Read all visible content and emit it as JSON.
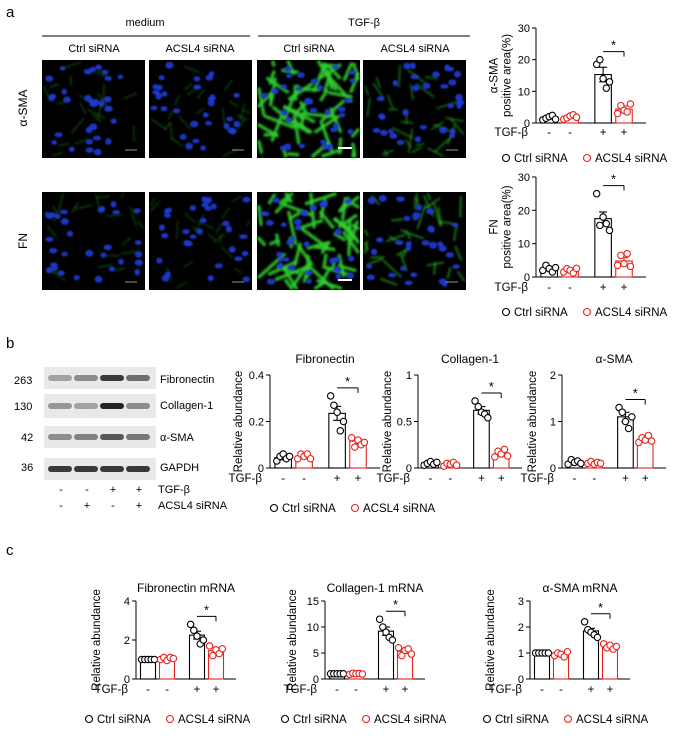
{
  "panels": {
    "a": "a",
    "b": "b",
    "c": "c"
  },
  "micrographs": {
    "group_labels": [
      "medium",
      "TGF-β"
    ],
    "column_labels": [
      "Ctrl siRNA",
      "ACSL4 siRNA",
      "Ctrl siRNA",
      "ACSL4 siRNA"
    ],
    "row_labels": [
      "α-SMA",
      "FN"
    ],
    "nuclei_color": "#1f3bd6",
    "stain_color": "#2fd02f"
  },
  "western_blot": {
    "bands": [
      {
        "marker": "263",
        "protein": "Fibronectin"
      },
      {
        "marker": "130",
        "protein": "Collagen-1"
      },
      {
        "marker": "42",
        "protein": "α-SMA"
      },
      {
        "marker": "36",
        "protein": "GAPDH"
      }
    ],
    "conditions": [
      {
        "label": "TGF-β",
        "signs": [
          "-",
          "-",
          "+",
          "+"
        ]
      },
      {
        "label": "ACSL4 siRNA",
        "signs": [
          "-",
          "+",
          "-",
          "+"
        ]
      }
    ]
  },
  "legend": {
    "ctrl": "Ctrl siRNA",
    "acsl4": "ACSL4 siRNA",
    "ctrl_color": "#000000",
    "acsl4_color": "#e8231e"
  },
  "chart_data": [
    {
      "id": "aSMA_area",
      "type": "bar",
      "title": "",
      "ylabel_lines": [
        "α-SMA",
        "positive area(%)"
      ],
      "ylim": [
        0,
        30
      ],
      "yticks": [
        "0",
        "10",
        "20",
        "30"
      ],
      "xrow_label": "TGF-β",
      "xsigns": [
        "-",
        "-",
        "+",
        "+"
      ],
      "values": [
        1.8,
        1.9,
        15.3,
        4.4
      ],
      "errors": [
        0.4,
        0.4,
        2.3,
        1.0
      ],
      "points": [
        [
          1.0,
          1.5,
          2.0,
          2.4,
          1.2
        ],
        [
          1.2,
          1.6,
          2.2,
          2.6,
          1.8
        ],
        [
          18.5,
          20.0,
          14.0,
          11.0,
          13.0
        ],
        [
          3.0,
          5.5,
          4.0,
          3.5,
          6.0
        ]
      ],
      "significance": "*"
    },
    {
      "id": "FN_area",
      "type": "bar",
      "title": "",
      "ylabel_lines": [
        "FN",
        "positive area(%)"
      ],
      "ylim": [
        0,
        30
      ],
      "yticks": [
        "0",
        "10",
        "20",
        "30"
      ],
      "xrow_label": "TGF-β",
      "xsigns": [
        "-",
        "-",
        "+",
        "+"
      ],
      "values": [
        2.5,
        2.0,
        17.5,
        4.8
      ],
      "errors": [
        0.5,
        0.4,
        2.0,
        1.0
      ],
      "points": [
        [
          2.0,
          3.5,
          2.5,
          1.5,
          2.8
        ],
        [
          1.5,
          2.5,
          2.0,
          1.2,
          2.6
        ],
        [
          25.0,
          15.5,
          18.0,
          16.0,
          14.0
        ],
        [
          3.5,
          6.5,
          4.0,
          7.0,
          3.2
        ]
      ],
      "significance": "*"
    },
    {
      "id": "FN_protein",
      "type": "bar",
      "title": "Fibronectin",
      "ylabel_lines": [
        "Relative abundance"
      ],
      "ylim": [
        0,
        0.4
      ],
      "yticks": [
        "0",
        "0.2",
        "0.4"
      ],
      "xrow_label": "TGF-β",
      "xsigns": [
        "-",
        "-",
        "+",
        "+"
      ],
      "values": [
        0.045,
        0.05,
        0.235,
        0.115
      ],
      "errors": [
        0.01,
        0.01,
        0.03,
        0.01
      ],
      "points": [
        [
          0.03,
          0.05,
          0.06,
          0.04,
          0.05
        ],
        [
          0.04,
          0.06,
          0.05,
          0.06,
          0.04
        ],
        [
          0.31,
          0.27,
          0.24,
          0.16,
          0.2
        ],
        [
          0.13,
          0.09,
          0.12,
          0.1,
          0.11
        ]
      ],
      "significance": "*"
    },
    {
      "id": "COL_protein",
      "type": "bar",
      "title": "Collagen-1",
      "ylabel_lines": [
        "Relative abundance"
      ],
      "ylim": [
        0,
        1
      ],
      "yticks": [
        "0",
        "0.5",
        "1"
      ],
      "xrow_label": "TGF-β",
      "xsigns": [
        "-",
        "-",
        "+",
        "+"
      ],
      "values": [
        0.05,
        0.04,
        0.62,
        0.15
      ],
      "errors": [
        0.01,
        0.01,
        0.04,
        0.02
      ],
      "points": [
        [
          0.03,
          0.05,
          0.07,
          0.04,
          0.06
        ],
        [
          0.02,
          0.05,
          0.04,
          0.06,
          0.03
        ],
        [
          0.72,
          0.66,
          0.6,
          0.58,
          0.54
        ],
        [
          0.12,
          0.18,
          0.15,
          0.2,
          0.13
        ]
      ],
      "significance": "*"
    },
    {
      "id": "aSMA_protein",
      "type": "bar",
      "title": "α-SMA",
      "ylabel_lines": [
        "Relative abundance"
      ],
      "ylim": [
        0,
        2
      ],
      "yticks": [
        "0",
        "1",
        "2"
      ],
      "xrow_label": "TGF-β",
      "xsigns": [
        "-",
        "-",
        "+",
        "+"
      ],
      "values": [
        0.13,
        0.11,
        1.1,
        0.6
      ],
      "errors": [
        0.03,
        0.02,
        0.1,
        0.04
      ],
      "points": [
        [
          0.08,
          0.18,
          0.12,
          0.15,
          0.1
        ],
        [
          0.1,
          0.14,
          0.08,
          0.12,
          0.1
        ],
        [
          1.3,
          1.2,
          1.0,
          0.85,
          1.1
        ],
        [
          0.55,
          0.65,
          0.6,
          0.7,
          0.58
        ]
      ],
      "significance": "*"
    },
    {
      "id": "FN_mRNA",
      "type": "bar",
      "title": "Fibronectin mRNA",
      "ylabel_lines": [
        "Relative abundance"
      ],
      "ylim": [
        0,
        4
      ],
      "yticks": [
        "0",
        "2",
        "4"
      ],
      "xrow_label": "TGF-β",
      "xsigns": [
        "-",
        "-",
        "+",
        "+"
      ],
      "values": [
        1.0,
        1.05,
        2.25,
        1.45
      ],
      "errors": [
        0.02,
        0.05,
        0.2,
        0.15
      ],
      "points": [
        [
          1.0,
          1.0,
          1.0,
          1.0,
          1.0
        ],
        [
          1.0,
          1.1,
          0.95,
          1.1,
          1.05
        ],
        [
          2.8,
          2.5,
          2.2,
          1.8,
          2.0
        ],
        [
          1.7,
          1.2,
          1.5,
          1.3,
          1.55
        ]
      ],
      "significance": "*"
    },
    {
      "id": "COL_mRNA",
      "type": "bar",
      "title": "Collagen-1 mRNA",
      "ylabel_lines": [
        "Relative abundance"
      ],
      "ylim": [
        0,
        15
      ],
      "yticks": [
        "0",
        "5",
        "10",
        "15"
      ],
      "xrow_label": "TGF-β",
      "xsigns": [
        "-",
        "-",
        "+",
        "+"
      ],
      "values": [
        1.0,
        1.0,
        9.2,
        5.3
      ],
      "errors": [
        0.02,
        0.05,
        0.8,
        0.4
      ],
      "points": [
        [
          1.0,
          1.0,
          1.0,
          1.0,
          1.0
        ],
        [
          0.9,
          1.1,
          1.0,
          1.05,
          0.95
        ],
        [
          11.5,
          10.0,
          9.0,
          8.0,
          7.5
        ],
        [
          6.0,
          4.5,
          5.5,
          5.8,
          4.8
        ]
      ],
      "significance": "*"
    },
    {
      "id": "aSMA_mRNA",
      "type": "bar",
      "title": "α-SMA mRNA",
      "ylabel_lines": [
        "Relative abundance"
      ],
      "ylim": [
        0,
        3
      ],
      "yticks": [
        "0",
        "1",
        "2",
        "3"
      ],
      "xrow_label": "TGF-β",
      "xsigns": [
        "-",
        "-",
        "+",
        "+"
      ],
      "values": [
        1.0,
        0.95,
        1.85,
        1.25
      ],
      "errors": [
        0.02,
        0.05,
        0.1,
        0.06
      ],
      "points": [
        [
          1.0,
          1.0,
          1.0,
          1.0,
          1.0
        ],
        [
          0.9,
          1.0,
          0.95,
          0.85,
          1.05
        ],
        [
          2.2,
          1.9,
          1.8,
          1.7,
          1.6
        ],
        [
          1.35,
          1.2,
          1.3,
          1.15,
          1.25
        ]
      ],
      "significance": "*"
    }
  ]
}
